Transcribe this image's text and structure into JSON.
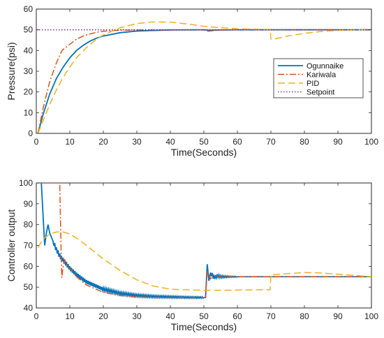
{
  "colors": {
    "ogunnaike": "#0072BD",
    "kariwala": "#D95319",
    "pid": "#EDB120",
    "setpoint": "#7E2F8E"
  },
  "chart_data": [
    {
      "type": "line",
      "title": "",
      "xlabel": "Time(Seconds)",
      "ylabel": "Pressure(psi)",
      "xlim": [
        0,
        100
      ],
      "ylim": [
        0,
        60
      ],
      "xticks": [
        0,
        10,
        20,
        30,
        40,
        50,
        60,
        70,
        80,
        90,
        100
      ],
      "yticks": [
        0,
        10,
        20,
        30,
        40,
        50,
        60
      ],
      "grid": false,
      "legend_position": "right",
      "series": [
        {
          "name": "Ogunnaike",
          "style": "solid",
          "x": [
            0.5,
            2,
            4,
            6,
            8,
            10,
            12,
            14,
            16,
            18,
            20,
            25,
            30,
            35,
            40,
            45,
            50,
            50.5,
            51,
            55,
            60,
            70,
            80,
            90,
            100
          ],
          "y": [
            0,
            9,
            19,
            26.5,
            32,
            36.5,
            40,
            42.5,
            44.5,
            46,
            47,
            48.6,
            49.4,
            49.7,
            49.9,
            49.95,
            50,
            50,
            49.8,
            49.9,
            50,
            50,
            50,
            50,
            50
          ]
        },
        {
          "name": "Kariwala",
          "style": "dashdot",
          "x": [
            0.5,
            2,
            4,
            6,
            7.5,
            8,
            10,
            12,
            14,
            16,
            18,
            20,
            25,
            30,
            40,
            50,
            51,
            55,
            60,
            70,
            80,
            90,
            100
          ],
          "y": [
            0,
            12,
            25,
            34,
            39.5,
            40.5,
            43,
            45.5,
            47,
            48,
            48.8,
            49.3,
            49.8,
            49.9,
            50,
            50,
            49.3,
            49.9,
            50,
            50,
            50,
            50,
            50
          ]
        },
        {
          "name": "PID",
          "style": "dashed",
          "x": [
            0.5,
            2,
            4,
            6,
            8,
            10,
            12,
            15,
            18,
            20,
            25,
            30,
            35,
            40,
            45,
            50,
            55,
            60,
            65,
            69.8,
            70,
            71,
            75,
            80,
            85,
            90,
            95,
            100
          ],
          "y": [
            0,
            6,
            14,
            21,
            27,
            32,
            36.5,
            41.5,
            45.5,
            47.5,
            51,
            53,
            53.8,
            53.7,
            52.8,
            51.7,
            51,
            50.5,
            50.3,
            50.2,
            45.5,
            45.5,
            47,
            48.3,
            49.2,
            49.7,
            49.9,
            50
          ]
        },
        {
          "name": "Setpoint",
          "style": "dotted",
          "x": [
            0,
            100
          ],
          "y": [
            50,
            50
          ]
        }
      ]
    },
    {
      "type": "line",
      "title": "",
      "xlabel": "Time(Seconds)",
      "ylabel": "Controller output",
      "xlim": [
        0,
        100
      ],
      "ylim": [
        40,
        100
      ],
      "xticks": [
        0,
        10,
        20,
        30,
        40,
        50,
        60,
        70,
        80,
        90,
        100
      ],
      "yticks": [
        40,
        50,
        60,
        70,
        80,
        90,
        100
      ],
      "grid": false,
      "series": [
        {
          "name": "Ogunnaike",
          "style": "solid",
          "x": [
            1.5,
            2,
            2.5,
            3,
            3.5,
            4,
            5,
            6,
            7,
            8,
            9,
            10,
            12,
            15,
            20,
            25,
            30,
            35,
            40,
            45,
            50,
            50.5,
            51,
            51.5,
            52,
            53,
            54,
            55,
            60,
            70,
            80,
            90,
            100
          ],
          "y": [
            100,
            85,
            70,
            76,
            80,
            76,
            72,
            68,
            65,
            63,
            61,
            59,
            56,
            52.5,
            49,
            47,
            46,
            45.5,
            45.3,
            45.1,
            45,
            45,
            61,
            53,
            57,
            54.5,
            55.5,
            55,
            55,
            55,
            55,
            55,
            55
          ],
          "oscillation_amplitude": 1.2
        },
        {
          "name": "Kariwala",
          "style": "dashdot",
          "x": [
            0.5,
            7,
            7.3,
            7.6,
            8,
            8.5,
            9,
            10,
            12,
            15,
            20,
            25,
            30,
            35,
            40,
            45,
            50,
            50.5,
            51,
            52,
            53,
            55,
            60,
            70,
            80,
            90,
            100
          ],
          "y": [
            100,
            100,
            75,
            54.5,
            60,
            63,
            61,
            59,
            55,
            51,
            47.5,
            46,
            45.3,
            45.1,
            45,
            45,
            45,
            45,
            58,
            54,
            56,
            55,
            55,
            55,
            55,
            55,
            55
          ]
        },
        {
          "name": "PID",
          "style": "dashed",
          "x": [
            0.5,
            2,
            4,
            6,
            8,
            10,
            12,
            15,
            20,
            25,
            30,
            35,
            40,
            45,
            50,
            55,
            60,
            65,
            69.8,
            70,
            71,
            75,
            80,
            85,
            90,
            95,
            100
          ],
          "y": [
            69,
            73,
            75.5,
            76.5,
            76.5,
            75.5,
            73.5,
            70,
            63.5,
            58,
            53.5,
            50.5,
            49,
            48.7,
            48.5,
            48.5,
            48.6,
            48.7,
            48.8,
            56,
            56,
            56.5,
            57,
            56.8,
            56.2,
            55.6,
            55
          ]
        }
      ]
    }
  ]
}
